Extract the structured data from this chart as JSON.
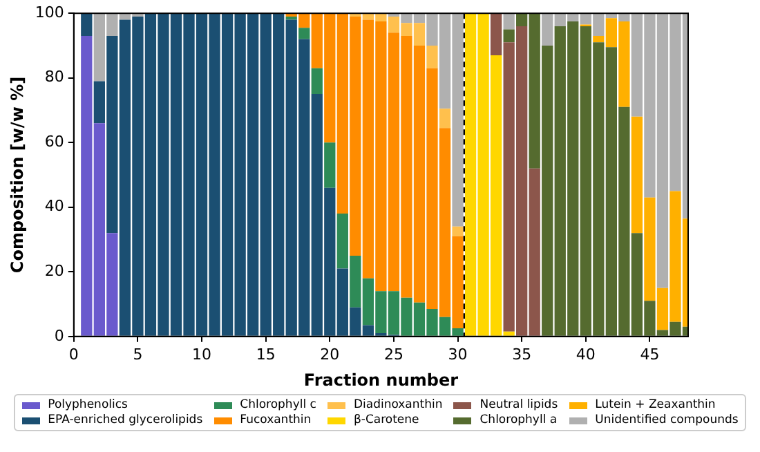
{
  "chart_data": {
    "type": "bar",
    "stacked": true,
    "xlabel": "Fraction number",
    "ylabel": "Composition [w/w %]",
    "x": [
      1,
      2,
      3,
      4,
      5,
      6,
      7,
      8,
      9,
      10,
      11,
      12,
      13,
      14,
      15,
      16,
      17,
      18,
      19,
      20,
      21,
      22,
      23,
      24,
      25,
      26,
      27,
      28,
      29,
      30,
      31,
      32,
      33,
      34,
      35,
      36,
      37,
      38,
      39,
      40,
      41,
      42,
      43,
      44,
      45,
      46,
      47,
      48
    ],
    "xlim": [
      0,
      48
    ],
    "xticks": [
      0,
      5,
      10,
      15,
      20,
      25,
      30,
      35,
      40,
      45
    ],
    "ylim": [
      0,
      100
    ],
    "yticks": [
      0,
      20,
      40,
      60,
      80,
      100
    ],
    "grid": false,
    "legend": "bottom",
    "ref_lines": [
      {
        "axis": "x",
        "value": 30.5,
        "color": "#000000",
        "line_style": "dashed"
      }
    ],
    "series": [
      {
        "name": "Polyphenolics",
        "color": "#6a5acd",
        "values": [
          93,
          66,
          32,
          null,
          null,
          null,
          null,
          null,
          null,
          null,
          null,
          null,
          null,
          null,
          null,
          null,
          null,
          null,
          null,
          null,
          null,
          null,
          null,
          null,
          null,
          null,
          null,
          null,
          null,
          null,
          null,
          null,
          null,
          null,
          null,
          null,
          null,
          null,
          null,
          null,
          null,
          null,
          null,
          null,
          null,
          null,
          null,
          null
        ]
      },
      {
        "name": "EPA-enriched glycerolipids",
        "color": "#1b4f72",
        "values": [
          7,
          13,
          61,
          98,
          99,
          100,
          100,
          100,
          100,
          100,
          100,
          100,
          100,
          100,
          100,
          100,
          98,
          92,
          75,
          46,
          21,
          9,
          3.5,
          1,
          0.5,
          null,
          null,
          null,
          null,
          null,
          null,
          null,
          null,
          null,
          null,
          null,
          null,
          null,
          null,
          null,
          null,
          null,
          null,
          null,
          null,
          null,
          null,
          null
        ]
      },
      {
        "name": "Chlorophyll c",
        "color": "#2e8b57",
        "values": [
          null,
          null,
          null,
          null,
          null,
          null,
          null,
          null,
          null,
          null,
          null,
          null,
          null,
          null,
          null,
          null,
          1,
          3.5,
          8,
          14,
          17,
          16,
          14.5,
          13,
          13.5,
          12,
          10.5,
          8.5,
          6,
          2.5,
          null,
          null,
          null,
          null,
          null,
          null,
          null,
          null,
          null,
          null,
          null,
          null,
          null,
          null,
          null,
          null,
          null,
          null
        ]
      },
      {
        "name": "Fucoxanthin",
        "color": "#ff8c00",
        "values": [
          null,
          null,
          null,
          null,
          null,
          null,
          null,
          null,
          null,
          null,
          null,
          null,
          null,
          null,
          null,
          null,
          1,
          4.5,
          17,
          40,
          62,
          74,
          80,
          83.5,
          80,
          81,
          79.5,
          74.5,
          58.5,
          28.5,
          null,
          null,
          null,
          null,
          null,
          null,
          null,
          null,
          null,
          null,
          null,
          null,
          null,
          null,
          null,
          null,
          null,
          null
        ]
      },
      {
        "name": "Diadinoxanthin",
        "color": "#ffc04d",
        "values": [
          null,
          null,
          null,
          null,
          null,
          null,
          null,
          null,
          null,
          null,
          null,
          null,
          null,
          null,
          null,
          null,
          null,
          null,
          null,
          null,
          null,
          1,
          2,
          2.5,
          5,
          4,
          7,
          7,
          6,
          3,
          null,
          null,
          null,
          null,
          null,
          null,
          null,
          null,
          null,
          null,
          null,
          null,
          null,
          null,
          null,
          null,
          null,
          null
        ]
      },
      {
        "name": "β-Carotene",
        "color": "#ffd700",
        "values": [
          null,
          null,
          null,
          null,
          null,
          null,
          null,
          null,
          null,
          null,
          null,
          null,
          null,
          null,
          null,
          null,
          null,
          null,
          null,
          null,
          null,
          null,
          null,
          null,
          null,
          null,
          null,
          null,
          null,
          null,
          100,
          100,
          87,
          1.5,
          null,
          null,
          null,
          null,
          null,
          null,
          null,
          null,
          null,
          null,
          null,
          null,
          null,
          null
        ]
      },
      {
        "name": "Neutral lipids",
        "color": "#8c564b",
        "values": [
          null,
          null,
          null,
          null,
          null,
          null,
          null,
          null,
          null,
          null,
          null,
          null,
          null,
          null,
          null,
          null,
          null,
          null,
          null,
          null,
          null,
          null,
          null,
          null,
          null,
          null,
          null,
          null,
          null,
          null,
          null,
          null,
          13,
          89.5,
          96,
          52,
          null,
          null,
          null,
          null,
          null,
          null,
          null,
          null,
          null,
          null,
          null,
          null
        ]
      },
      {
        "name": "Chlorophyll a",
        "color": "#556b2f",
        "values": [
          null,
          null,
          null,
          null,
          null,
          null,
          null,
          null,
          null,
          null,
          null,
          null,
          null,
          null,
          null,
          null,
          null,
          null,
          null,
          null,
          null,
          null,
          null,
          null,
          null,
          null,
          null,
          null,
          null,
          null,
          null,
          null,
          null,
          4,
          4,
          48,
          90,
          96,
          97.5,
          96,
          91,
          89.5,
          71,
          32,
          11,
          2,
          4.5,
          3
        ]
      },
      {
        "name": "Lutein + Zeaxanthin",
        "color": "#ffb000",
        "values": [
          null,
          null,
          null,
          null,
          null,
          null,
          null,
          null,
          null,
          null,
          null,
          null,
          null,
          null,
          null,
          null,
          null,
          null,
          null,
          null,
          null,
          null,
          null,
          null,
          null,
          null,
          null,
          null,
          null,
          null,
          null,
          null,
          null,
          null,
          null,
          null,
          null,
          null,
          null,
          0.5,
          2,
          9,
          26.5,
          36,
          32,
          13,
          40.5,
          33.5
        ]
      },
      {
        "name": "Unidentified compounds",
        "color": "#b0b0b0",
        "values": [
          null,
          21,
          7,
          2,
          1,
          null,
          null,
          null,
          null,
          null,
          null,
          null,
          null,
          null,
          null,
          null,
          null,
          null,
          null,
          null,
          null,
          null,
          null,
          null,
          1,
          3,
          3,
          10,
          29.5,
          66,
          null,
          null,
          null,
          5,
          null,
          null,
          10,
          4,
          2.5,
          3.5,
          7,
          1.5,
          2.5,
          32,
          57,
          85,
          55,
          63.5
        ]
      }
    ]
  }
}
